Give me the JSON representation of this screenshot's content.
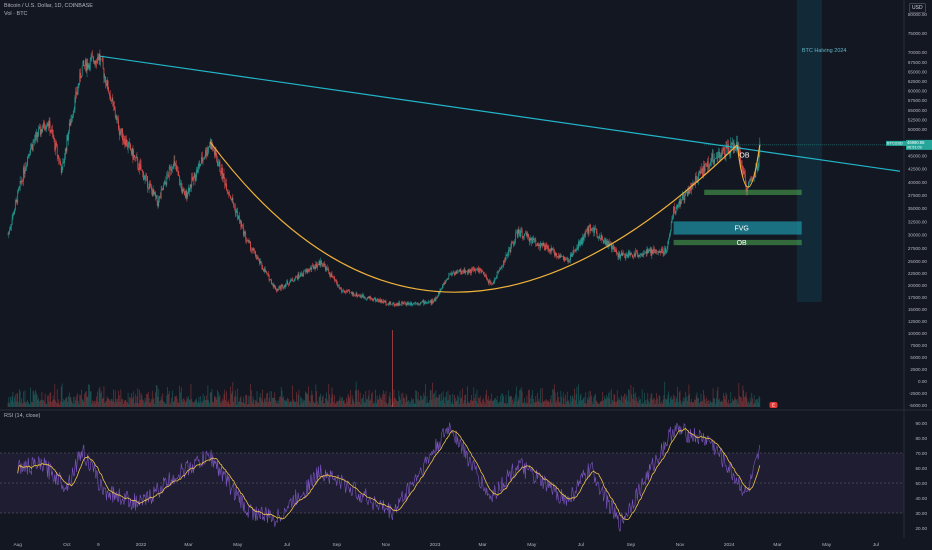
{
  "header": {
    "symbol_line": "Bitcoin / U.S. Dollar, 1D, COINBASE",
    "volume_line": "Vol · BTC",
    "rsi_line": "RSI (14, close)",
    "currency_button": "USD"
  },
  "chart_data": [
    {
      "type": "candlestick",
      "title": "Bitcoin / U.S. Dollar, 1D, COINBASE",
      "xlabel": "",
      "ylabel": "",
      "x_ticks": [
        "Aug",
        "Oct",
        "9",
        "2022",
        "Mar",
        "May",
        "Jul",
        "Sep",
        "Nov",
        "2023",
        "Mar",
        "May",
        "Jul",
        "Sep",
        "Nov",
        "2024",
        "Mar",
        "May",
        "Jul"
      ],
      "y_ticks": [
        "80000.00",
        "75000.00",
        "70000.00",
        "67500.00",
        "65000.00",
        "62500.00",
        "60000.00",
        "57500.00",
        "55000.00",
        "52500.00",
        "50000.00",
        "47500.00",
        "45000.00",
        "42500.00",
        "40000.00",
        "37500.00",
        "35000.00",
        "32500.00",
        "30000.00",
        "27500.00",
        "25000.00",
        "22500.00",
        "20000.00",
        "17500.00",
        "15000.00",
        "12500.00",
        "10000.00",
        "7500.00",
        "5000.00",
        "2500.00",
        "0.00",
        "-2500.00",
        "-5000.00"
      ],
      "price_label": {
        "symbol": "BTCUSD",
        "value": "46990.65",
        "countdown": "06:51:09"
      },
      "approx_path": [
        [
          "2021-07-20",
          30000
        ],
        [
          "2021-08-15",
          46000
        ],
        [
          "2021-09-07",
          52000
        ],
        [
          "2021-09-25",
          42000
        ],
        [
          "2021-10-20",
          66000
        ],
        [
          "2021-11-10",
          69000
        ],
        [
          "2021-12-05",
          50000
        ],
        [
          "2022-01-22",
          36000
        ],
        [
          "2022-02-10",
          44000
        ],
        [
          "2022-02-24",
          37000
        ],
        [
          "2022-03-28",
          47500
        ],
        [
          "2022-05-12",
          29000
        ],
        [
          "2022-06-18",
          19000
        ],
        [
          "2022-08-13",
          24800
        ],
        [
          "2022-09-07",
          18800
        ],
        [
          "2022-11-09",
          16000
        ],
        [
          "2022-12-30",
          16500
        ],
        [
          "2023-01-20",
          22500
        ],
        [
          "2023-02-25",
          23200
        ],
        [
          "2023-03-12",
          20000
        ],
        [
          "2023-04-14",
          30500
        ],
        [
          "2023-06-15",
          25000
        ],
        [
          "2023-07-13",
          31500
        ],
        [
          "2023-08-18",
          26000
        ],
        [
          "2023-10-15",
          27000
        ],
        [
          "2023-10-24",
          34500
        ],
        [
          "2023-12-08",
          44000
        ],
        [
          "2024-01-11",
          47000
        ],
        [
          "2024-01-23",
          38500
        ],
        [
          "2024-02-06",
          43000
        ],
        [
          "2024-02-08",
          46990
        ]
      ],
      "annotations": [
        {
          "kind": "trendline",
          "label": "",
          "color": "#22b5c8",
          "from": [
            "2021-11-10",
            69000
          ],
          "to": [
            "2024-07-31",
            42000
          ]
        },
        {
          "kind": "cup_curve",
          "label": "",
          "color": "#f0b23b",
          "from": [
            "2022-03-28",
            47500
          ],
          "bottom": [
            "2022-12-30",
            18500
          ],
          "to": [
            "2024-01-11",
            47000
          ]
        },
        {
          "kind": "handle_curve",
          "label": "",
          "color": "#f0b23b",
          "from": [
            "2024-01-11",
            47000
          ],
          "bottom": [
            "2024-01-24",
            39000
          ],
          "to": [
            "2024-02-08",
            47000
          ]
        },
        {
          "kind": "box",
          "label": "OB",
          "color": "#4caf50",
          "price_range": [
            37500,
            38500
          ],
          "from": "2023-12-01",
          "to": "2024-03-31"
        },
        {
          "kind": "box",
          "label": "FVG",
          "color": "#1e8fa0",
          "price_range": [
            30000,
            32500
          ],
          "from": "2023-10-24",
          "to": "2024-03-31"
        },
        {
          "kind": "box",
          "label": "OB",
          "color": "#4caf50",
          "price_range": [
            28000,
            29000
          ],
          "from": "2023-10-24",
          "to": "2024-03-31"
        },
        {
          "kind": "text",
          "label": "OB",
          "at": [
            "2024-01-20",
            45000
          ]
        },
        {
          "kind": "vertical_zone",
          "label": "BTC Halving 2024",
          "color": "#123a4a",
          "from": "2024-03-25",
          "to": "2024-04-25"
        }
      ],
      "volume_marker": "E"
    },
    {
      "type": "line",
      "title": "RSI (14, close)",
      "y_ticks": [
        "90.00",
        "80.00",
        "70.00",
        "60.00",
        "50.00",
        "40.00",
        "30.00",
        "20.00"
      ],
      "band": [
        30,
        70
      ],
      "midline": 50,
      "approx_path": [
        [
          "2021-08-01",
          60
        ],
        [
          "2021-09-01",
          62
        ],
        [
          "2021-10-01",
          48
        ],
        [
          "2021-10-20",
          72
        ],
        [
          "2021-11-15",
          45
        ],
        [
          "2022-01-01",
          36
        ],
        [
          "2022-02-15",
          56
        ],
        [
          "2022-03-28",
          68
        ],
        [
          "2022-05-12",
          32
        ],
        [
          "2022-06-18",
          26
        ],
        [
          "2022-08-13",
          58
        ],
        [
          "2022-11-09",
          30
        ],
        [
          "2023-01-20",
          88
        ],
        [
          "2023-03-10",
          40
        ],
        [
          "2023-04-14",
          62
        ],
        [
          "2023-06-15",
          38
        ],
        [
          "2023-07-13",
          60
        ],
        [
          "2023-08-18",
          22
        ],
        [
          "2023-10-24",
          86
        ],
        [
          "2023-12-08",
          78
        ],
        [
          "2024-01-23",
          42
        ],
        [
          "2024-02-08",
          70
        ]
      ]
    }
  ],
  "colors": {
    "background": "#131722",
    "up": "#26a69a",
    "down": "#ef5350",
    "rsi": "#7e57c2",
    "rsi_ma": "#f0c24b"
  }
}
